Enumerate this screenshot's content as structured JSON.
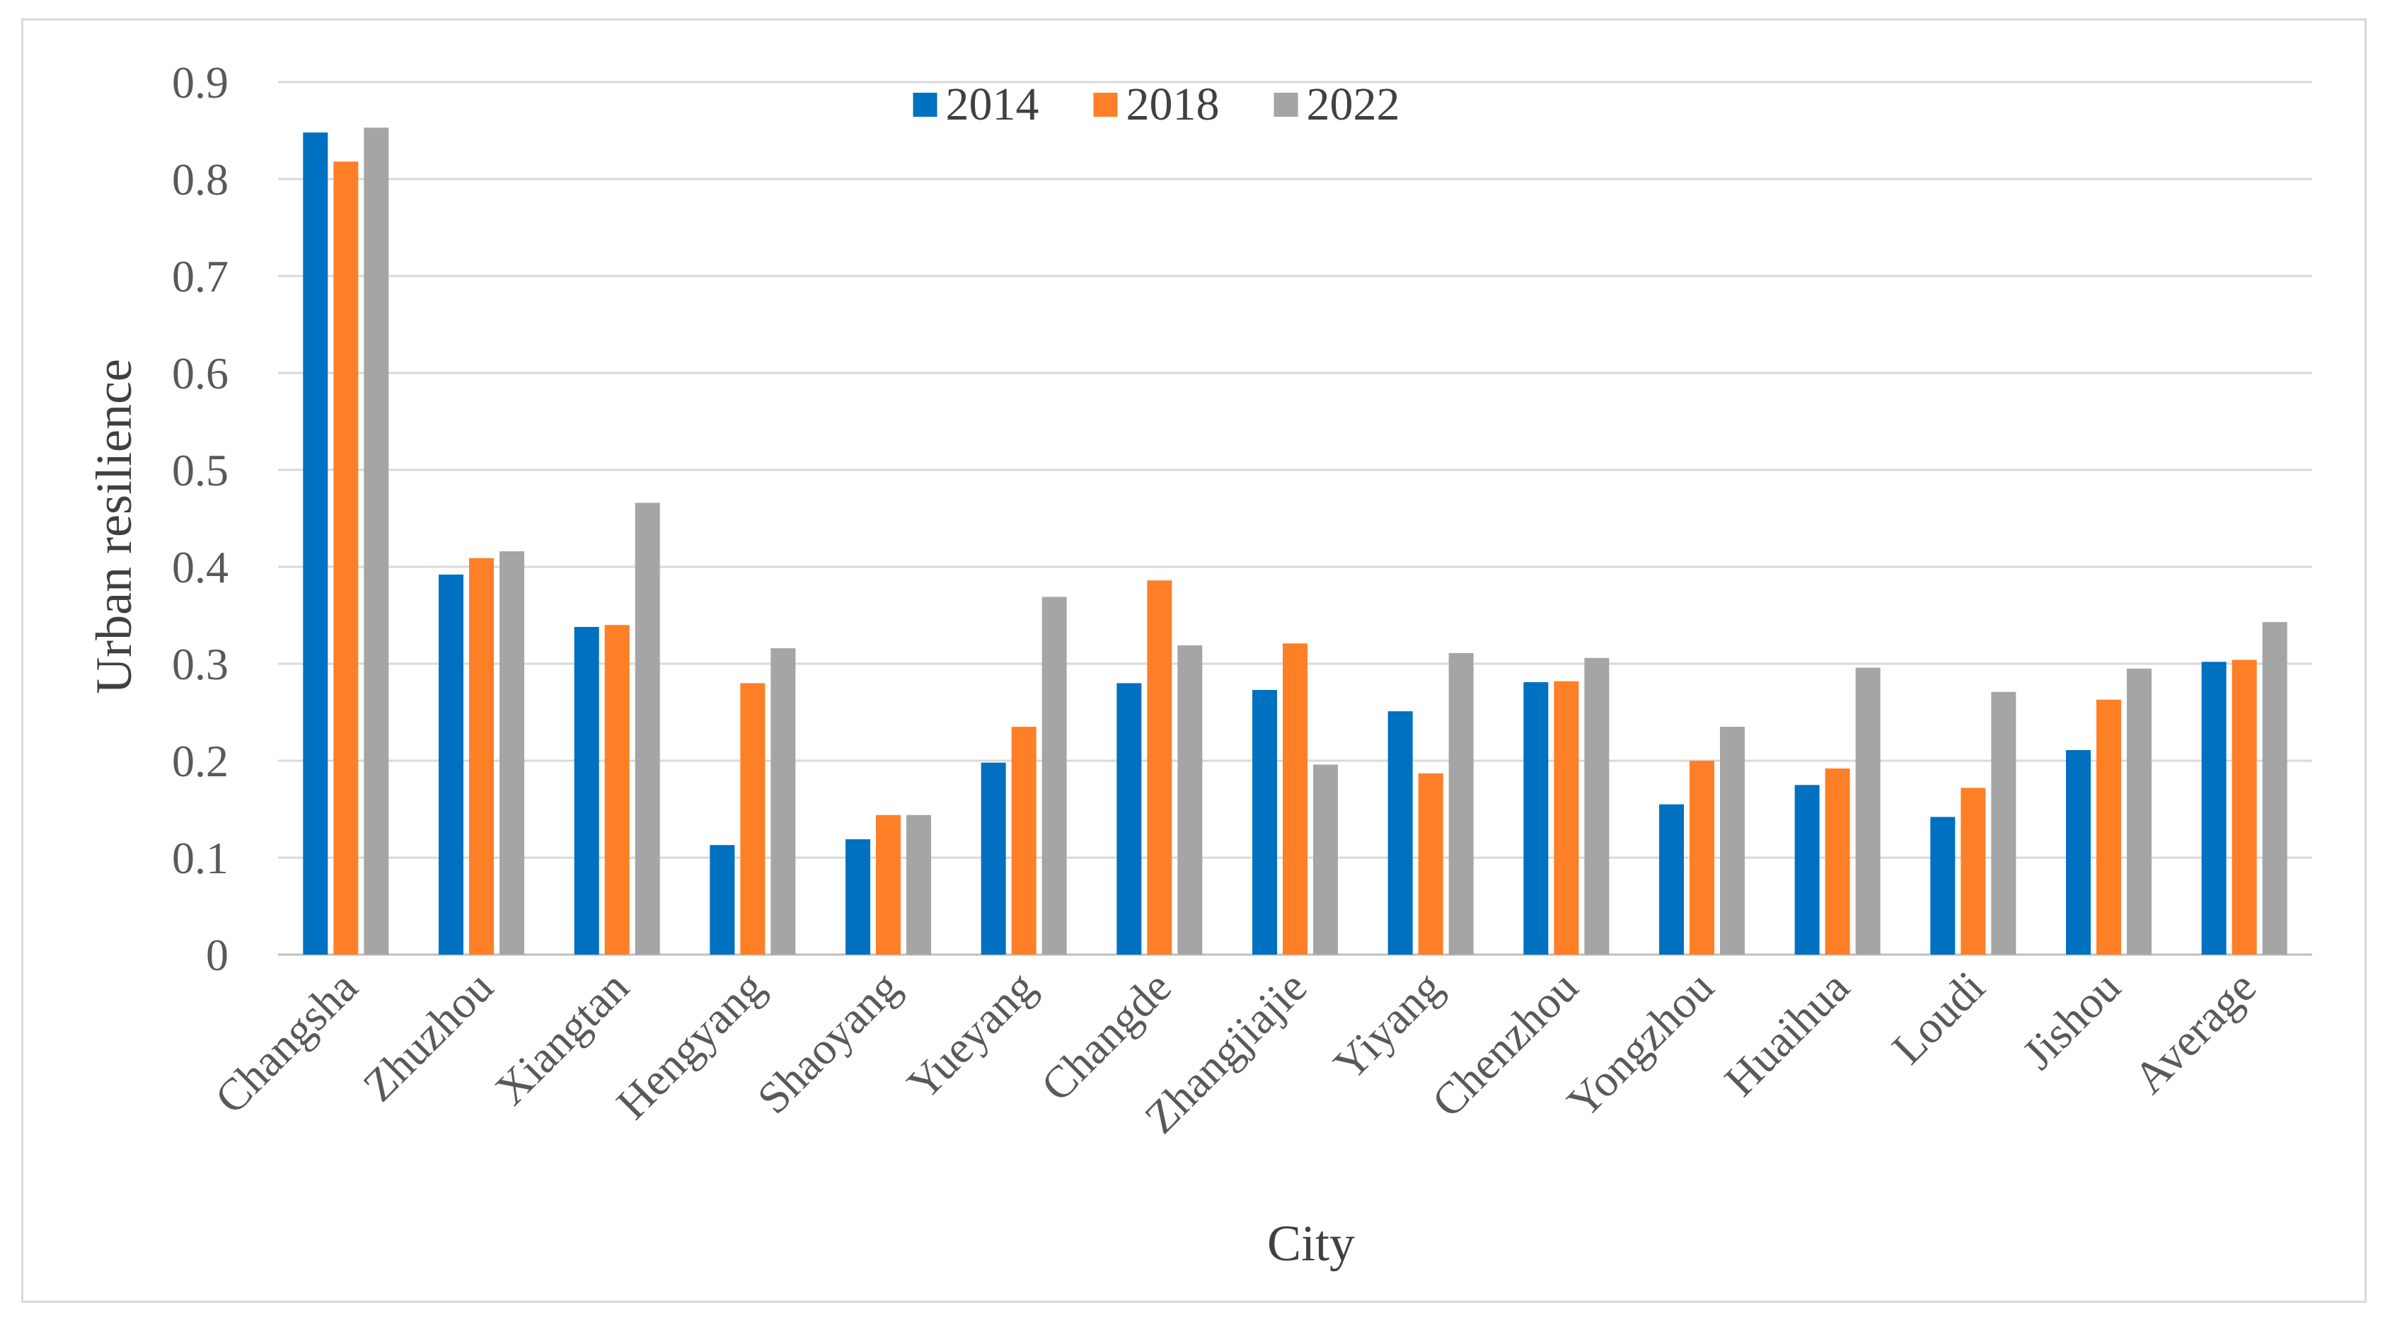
{
  "chart_data": {
    "type": "bar",
    "title": "",
    "xlabel": "City",
    "ylabel": "Urban resilience",
    "ylim": [
      0,
      0.9
    ],
    "yticks": [
      "0",
      "0.1",
      "0.2",
      "0.3",
      "0.4",
      "0.5",
      "0.6",
      "0.7",
      "0.8",
      "0.9"
    ],
    "grid": true,
    "legend_position": "top-center",
    "categories": [
      "Changsha",
      "Zhuzhou",
      "Xiangtan",
      "Hengyang",
      "Shaoyang",
      "Yueyang",
      "Changde",
      "Zhangjiajie",
      "Yiyang",
      "Chenzhou",
      "Yongzhou",
      "Huaihua",
      "Loudi",
      "Jishou",
      "Average"
    ],
    "series": [
      {
        "name": "2014",
        "color": "#0070c0",
        "values": [
          0.848,
          0.392,
          0.338,
          0.113,
          0.119,
          0.198,
          0.28,
          0.273,
          0.251,
          0.281,
          0.155,
          0.175,
          0.142,
          0.211,
          0.302
        ]
      },
      {
        "name": "2018",
        "color": "#ff7f27",
        "values": [
          0.818,
          0.409,
          0.34,
          0.28,
          0.144,
          0.235,
          0.386,
          0.321,
          0.187,
          0.282,
          0.2,
          0.192,
          0.172,
          0.263,
          0.304
        ]
      },
      {
        "name": "2022",
        "color": "#a5a5a5",
        "values": [
          0.853,
          0.416,
          0.466,
          0.316,
          0.144,
          0.369,
          0.319,
          0.196,
          0.311,
          0.306,
          0.235,
          0.296,
          0.271,
          0.295,
          0.343
        ]
      }
    ]
  }
}
